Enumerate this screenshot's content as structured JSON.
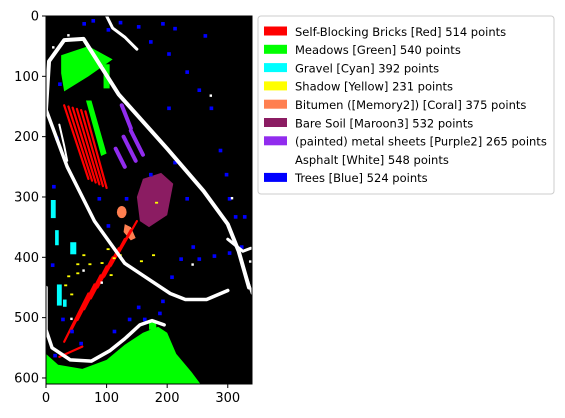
{
  "chart_data": {
    "type": "heatmap",
    "title": "",
    "xlabel": "",
    "ylabel": "",
    "xlim": [
      0,
      340
    ],
    "ylim": [
      610,
      0
    ],
    "x_ticks": [
      0,
      100,
      200,
      300
    ],
    "y_ticks": [
      0,
      100,
      200,
      300,
      400,
      500,
      600
    ],
    "background_color": "#000000",
    "legend_placement": "outside-right-top",
    "legend": [
      {
        "label": "Self-Blocking Bricks [Red] 514 points",
        "color": "#ff0000",
        "points": 514
      },
      {
        "label": "Meadows [Green] 540 points",
        "color": "#00ff00",
        "points": 540
      },
      {
        "label": "Gravel [Cyan] 392 points",
        "color": "#00ffff",
        "points": 392
      },
      {
        "label": "Shadow [Yellow] 231 points",
        "color": "#ffff00",
        "points": 231
      },
      {
        "label": "Bitumen ([Memory2]) [Coral] 375 points",
        "color": "#ff7f50",
        "points": 375
      },
      {
        "label": "Bare Soil [Maroon3] 532 points",
        "color": "#8b1c62",
        "points": 532
      },
      {
        "label": "(painted) metal sheets [Purple2] 265 points",
        "color": "#912cee",
        "points": 265
      },
      {
        "label": "Asphalt [White] 548 points",
        "color": "#ffffff",
        "points": 548
      },
      {
        "label": "Trees [Blue] 524 points",
        "color": "#0000ff",
        "points": 524
      }
    ]
  }
}
